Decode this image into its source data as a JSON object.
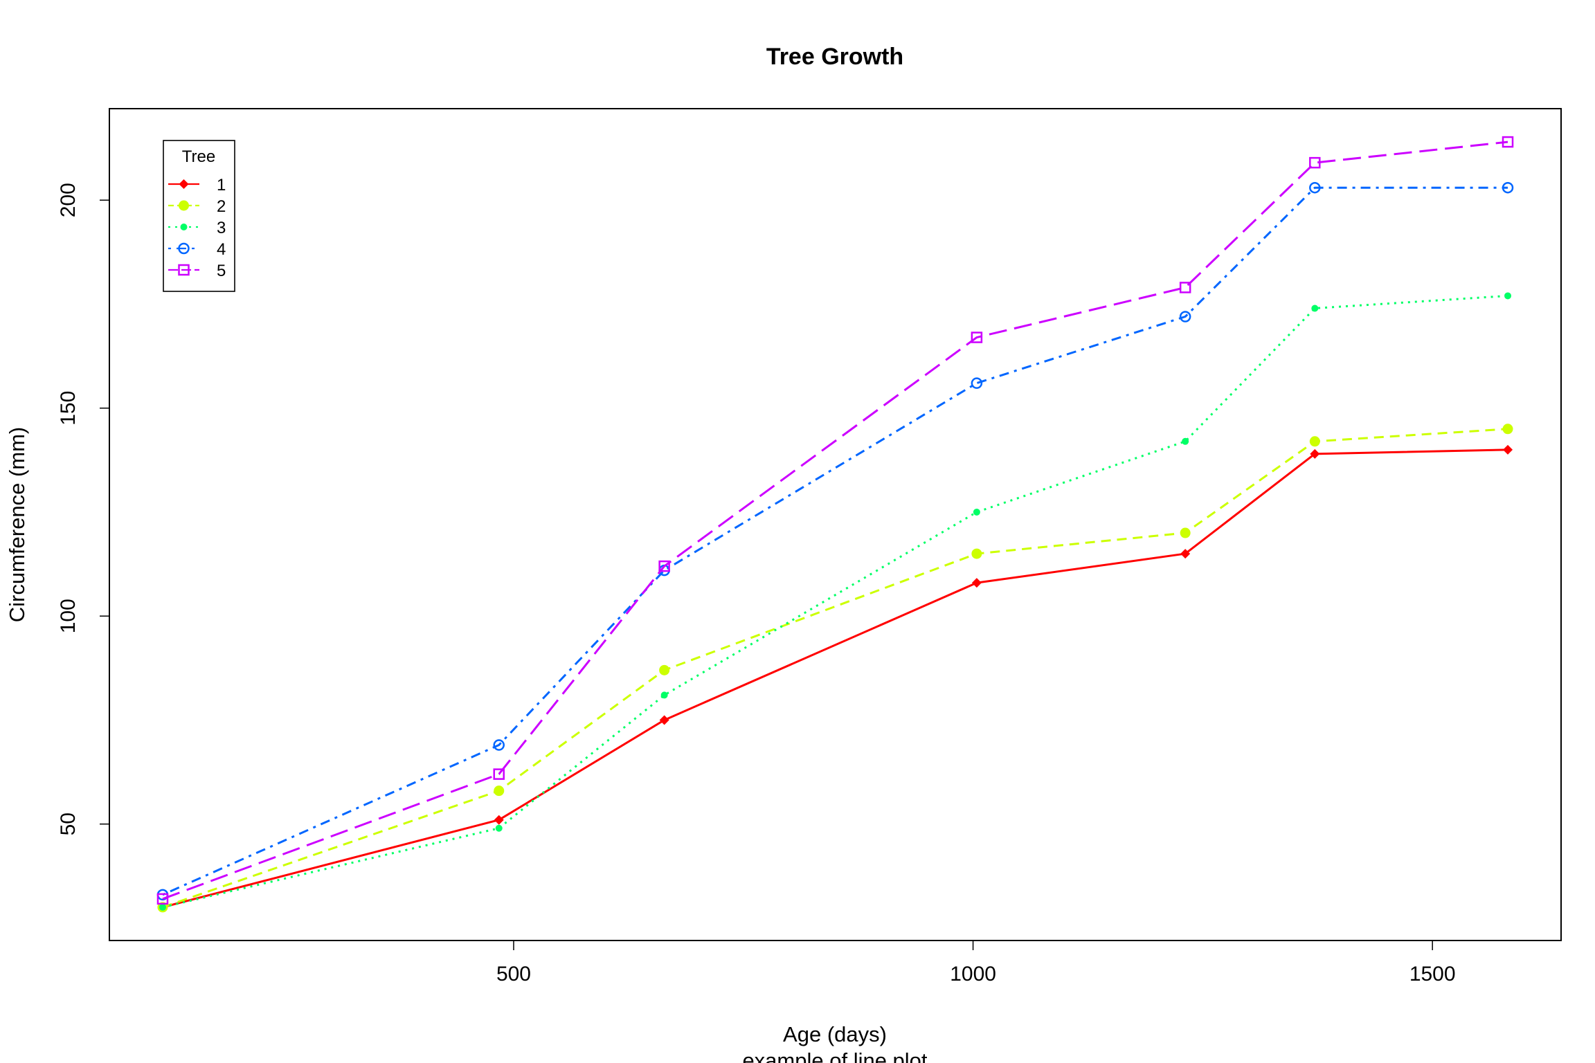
{
  "chart_data": {
    "type": "line",
    "title": "Tree Growth",
    "xlabel": "Age (days)",
    "subtitle": "example of line plot",
    "ylabel": "Circumference (mm)",
    "xlim": [
      60,
      1640
    ],
    "ylim": [
      22,
      222
    ],
    "x_ticks": [
      500,
      1000,
      1500
    ],
    "y_ticks": [
      50,
      100,
      150,
      200
    ],
    "grid": false,
    "legend": {
      "title": "Tree",
      "position": "top-left"
    },
    "x": [
      118,
      484,
      664,
      1004,
      1231,
      1372,
      1582
    ],
    "series": [
      {
        "name": "1",
        "color": "#ff0000",
        "dash": "solid",
        "marker": "diamond",
        "values": [
          30,
          51,
          75,
          108,
          115,
          139,
          140
        ]
      },
      {
        "name": "2",
        "color": "#ccff00",
        "dash": "dashed",
        "marker": "dot-large",
        "values": [
          30,
          58,
          87,
          115,
          120,
          142,
          145
        ]
      },
      {
        "name": "3",
        "color": "#00ff66",
        "dash": "dotted",
        "marker": "dot-small",
        "values": [
          30,
          49,
          81,
          125,
          142,
          174,
          177
        ]
      },
      {
        "name": "4",
        "color": "#0066ff",
        "dash": "dotdash",
        "marker": "open-circle",
        "values": [
          33,
          69,
          111,
          156,
          172,
          203,
          203
        ]
      },
      {
        "name": "5",
        "color": "#cc00ff",
        "dash": "longdash",
        "marker": "open-square",
        "values": [
          32,
          62,
          112,
          167,
          179,
          209,
          214
        ]
      }
    ]
  }
}
